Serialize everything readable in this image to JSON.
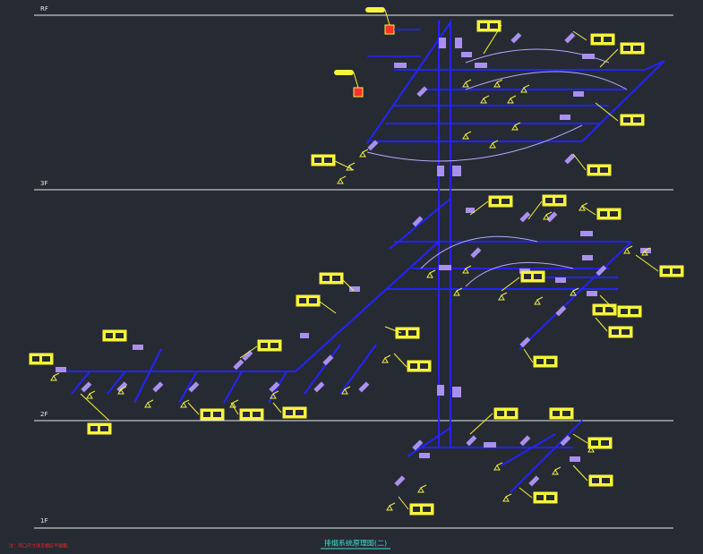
{
  "floors": [
    {
      "label": "RF"
    },
    {
      "label": "3F"
    },
    {
      "label": "2F"
    },
    {
      "label": "1F"
    }
  ],
  "title": "排烟系统原理图(二)",
  "note": "注：风口尺寸详见相应平面图。"
}
